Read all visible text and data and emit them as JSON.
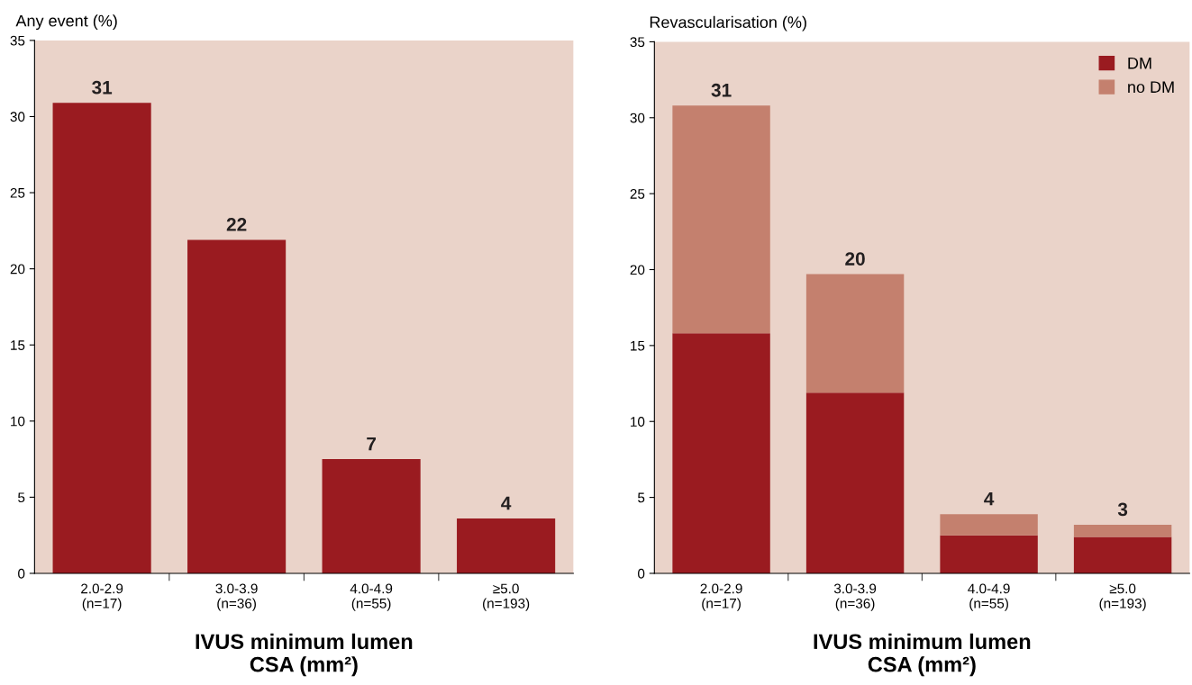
{
  "chart_data": [
    {
      "type": "bar",
      "ylabel": "Any event (%)",
      "xlabel": "IVUS minimum lumen\nCSA (mm²)",
      "categories": [
        "2.0-2.9\n(n=17)",
        "3.0-3.9\n(n=36)",
        "4.0-4.9\n(n=55)",
        "≥5.0\n(n=193)"
      ],
      "values": [
        30.9,
        21.9,
        7.5,
        3.6
      ],
      "color": "#9a1b20",
      "value_labels": [
        "31",
        "22",
        "7",
        "4"
      ],
      "ylim": [
        0,
        35
      ],
      "yticks": [
        0,
        5,
        10,
        15,
        20,
        25,
        30,
        35
      ],
      "grid": false,
      "legend": false
    },
    {
      "type": "bar",
      "ylabel": "Revascularisation (%)",
      "xlabel": "IVUS minimum lumen\nCSA (mm²)",
      "categories": [
        "2.0-2.9\n(n=17)",
        "3.0-3.9\n(n=36)",
        "4.0-4.9\n(n=55)",
        "≥5.0\n(n=193)"
      ],
      "stacked": true,
      "series": [
        {
          "name": "DM",
          "color": "#9a1b20",
          "values": [
            15.8,
            11.9,
            2.5,
            2.4
          ]
        },
        {
          "name": "no DM",
          "color": "#c4806e",
          "values": [
            15.0,
            7.8,
            1.4,
            0.8
          ]
        }
      ],
      "totals": [
        "31",
        "20",
        "4",
        "3"
      ],
      "ylim": [
        0,
        35
      ],
      "yticks": [
        0,
        5,
        10,
        15,
        20,
        25,
        30,
        35
      ],
      "grid": false,
      "legend": "top right"
    }
  ]
}
